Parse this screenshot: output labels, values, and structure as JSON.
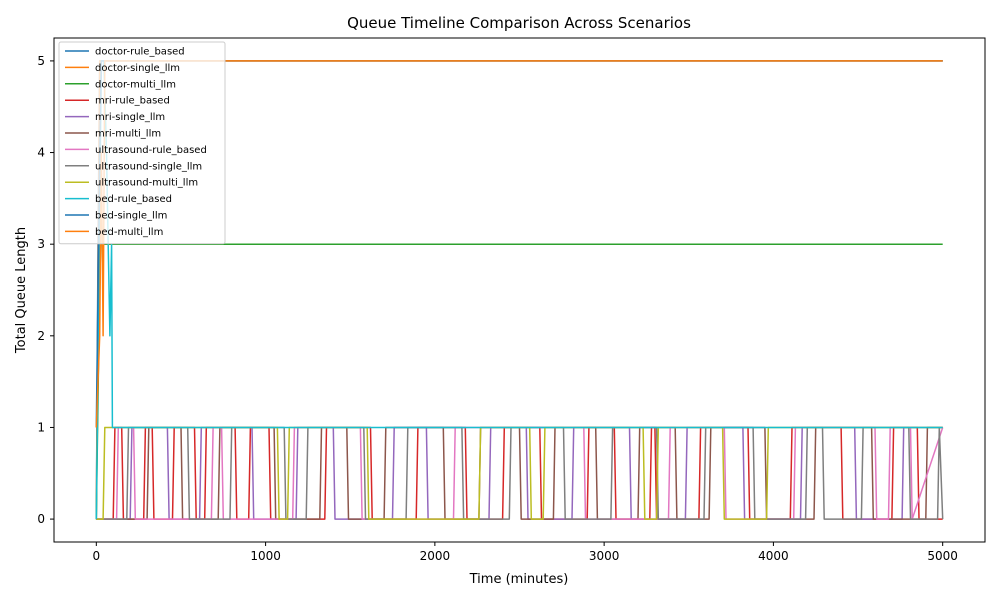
{
  "chart_data": {
    "type": "line",
    "title": "Queue Timeline Comparison Across Scenarios",
    "xlabel": "Time (minutes)",
    "ylabel": "Total Queue Length",
    "xlim": [
      -250,
      5250
    ],
    "ylim": [
      -0.25,
      5.25
    ],
    "xticks": [
      0,
      1000,
      2000,
      3000,
      4000,
      5000
    ],
    "yticks": [
      0,
      1,
      2,
      3,
      4,
      5
    ],
    "grid": false,
    "legend_position": "top-left",
    "series": [
      {
        "name": "doctor-rule_based",
        "color": "#1f77b4",
        "x": [
          0,
          10,
          20,
          5000
        ],
        "y": [
          0,
          3,
          5,
          5
        ]
      },
      {
        "name": "doctor-single_llm",
        "color": "#ff7f0e",
        "x": [
          0,
          12,
          20,
          5000
        ],
        "y": [
          0,
          3,
          5,
          5
        ]
      },
      {
        "name": "doctor-multi_llm",
        "color": "#2ca02c",
        "x": [
          0,
          15,
          25,
          5000
        ],
        "y": [
          0,
          2,
          3,
          3
        ]
      },
      {
        "name": "mri-rule_based",
        "color": "#d62728",
        "x": [
          0,
          100,
          110,
          150,
          160,
          280,
          290,
          330,
          340,
          450,
          460,
          580,
          590,
          640,
          650,
          820,
          830,
          900,
          910,
          1020,
          1030,
          1350,
          1360,
          1620,
          1630,
          1890,
          1900,
          2180,
          2190,
          2400,
          2410,
          2620,
          2630,
          2900,
          2910,
          3060,
          3070,
          3270,
          3280,
          3300,
          3310,
          3560,
          3570,
          3850,
          3860,
          4100,
          4110,
          4400,
          4410,
          4700,
          4710,
          4850,
          4860,
          5000
        ],
        "y": [
          0,
          0,
          1,
          1,
          0,
          0,
          1,
          1,
          0,
          0,
          1,
          1,
          0,
          0,
          1,
          1,
          0,
          0,
          1,
          1,
          0,
          0,
          1,
          1,
          0,
          0,
          1,
          1,
          0,
          0,
          1,
          1,
          0,
          0,
          1,
          1,
          0,
          0,
          1,
          1,
          0,
          0,
          1,
          1,
          0,
          0,
          1,
          1,
          0,
          0,
          1,
          1,
          0,
          0
        ]
      },
      {
        "name": "mri-single_llm",
        "color": "#9467bd",
        "x": [
          0,
          200,
          210,
          420,
          430,
          610,
          620,
          920,
          930,
          1180,
          1190,
          1400,
          1410,
          1750,
          1760,
          1950,
          1960,
          2320,
          2330,
          2540,
          2550,
          2810,
          2820,
          3150,
          3160,
          3480,
          3490,
          3820,
          3830,
          4160,
          4170,
          4480,
          4490,
          4760,
          4770,
          5000
        ],
        "y": [
          0,
          0,
          1,
          1,
          0,
          0,
          1,
          1,
          0,
          0,
          1,
          1,
          0,
          0,
          1,
          1,
          0,
          0,
          1,
          1,
          0,
          0,
          1,
          1,
          0,
          0,
          1,
          1,
          0,
          0,
          1,
          1,
          0,
          0,
          1,
          1
        ]
      },
      {
        "name": "mri-multi_llm",
        "color": "#8c564b",
        "x": [
          0,
          300,
          310,
          500,
          510,
          720,
          730,
          1050,
          1060,
          1320,
          1330,
          1480,
          1490,
          1700,
          1710,
          2050,
          2060,
          2260,
          2270,
          2500,
          2510,
          2700,
          2710,
          2950,
          2960,
          3200,
          3210,
          3420,
          3430,
          3620,
          3630,
          3950,
          3960,
          4240,
          4250,
          4580,
          4590,
          4900,
          4910,
          5000
        ],
        "y": [
          0,
          0,
          1,
          1,
          0,
          0,
          1,
          1,
          0,
          0,
          1,
          1,
          0,
          0,
          1,
          1,
          0,
          0,
          1,
          1,
          0,
          0,
          1,
          1,
          0,
          0,
          1,
          1,
          0,
          0,
          1,
          1,
          0,
          0,
          1,
          1,
          0,
          0,
          1,
          1
        ]
      },
      {
        "name": "ultrasound-rule_based",
        "color": "#e377c2",
        "x": [
          0,
          120,
          130,
          220,
          230,
          680,
          690,
          740,
          750,
          1160,
          1170,
          1560,
          1570,
          2110,
          2120,
          2880,
          2890,
          3380,
          3390,
          3710,
          3720,
          4120,
          4130,
          4600,
          4610,
          4680,
          4690,
          4810,
          4820,
          5000
        ],
        "y": [
          0,
          0,
          1,
          1,
          0,
          0,
          1,
          1,
          0,
          0,
          1,
          1,
          0,
          0,
          1,
          1,
          0,
          0,
          1,
          1,
          0,
          0,
          1,
          1,
          0,
          0,
          1,
          1,
          0,
          1
        ]
      },
      {
        "name": "ultrasound-single_llm",
        "color": "#7f7f7f",
        "x": [
          0,
          180,
          190,
          540,
          550,
          790,
          800,
          1110,
          1120,
          1240,
          1250,
          1580,
          1590,
          1830,
          1840,
          2160,
          2170,
          2440,
          2450,
          2760,
          2770,
          3040,
          3050,
          3310,
          3320,
          3590,
          3600,
          3880,
          3890,
          4190,
          4200,
          4290,
          4300,
          4520,
          4530,
          4800,
          4810,
          4970,
          4980,
          5000
        ],
        "y": [
          0,
          0,
          1,
          1,
          0,
          0,
          1,
          1,
          0,
          0,
          1,
          1,
          0,
          0,
          1,
          1,
          0,
          0,
          1,
          1,
          0,
          0,
          1,
          1,
          0,
          0,
          1,
          1,
          0,
          0,
          1,
          1,
          0,
          0,
          1,
          1,
          0,
          0,
          1,
          0
        ]
      },
      {
        "name": "ultrasound-multi_llm",
        "color": "#bcbd22",
        "x": [
          0,
          40,
          50,
          1070,
          1080,
          1130,
          1140,
          1600,
          1610,
          2260,
          2270,
          2560,
          2570,
          2640,
          2650,
          3230,
          3240,
          3310,
          3320,
          3700,
          3710,
          3960,
          3970,
          5000
        ],
        "y": [
          0,
          0,
          1,
          1,
          0,
          0,
          1,
          1,
          0,
          0,
          1,
          1,
          0,
          0,
          1,
          1,
          0,
          0,
          1,
          1,
          0,
          0,
          1,
          1
        ]
      },
      {
        "name": "bed-rule_based",
        "color": "#17becf",
        "x": [
          0,
          30,
          45,
          60,
          80,
          90,
          95,
          100,
          5000
        ],
        "y": [
          0,
          5,
          5,
          4,
          2,
          3,
          1,
          1,
          1
        ]
      },
      {
        "name": "bed-single_llm",
        "color": "#1f77b4",
        "x": [
          0,
          20,
          30,
          5000
        ],
        "y": [
          1,
          4,
          5,
          5
        ]
      },
      {
        "name": "bed-multi_llm",
        "color": "#ff7f0e",
        "x": [
          0,
          20,
          30,
          40,
          50,
          5000
        ],
        "y": [
          1,
          2,
          4,
          2,
          5,
          5
        ]
      }
    ]
  }
}
